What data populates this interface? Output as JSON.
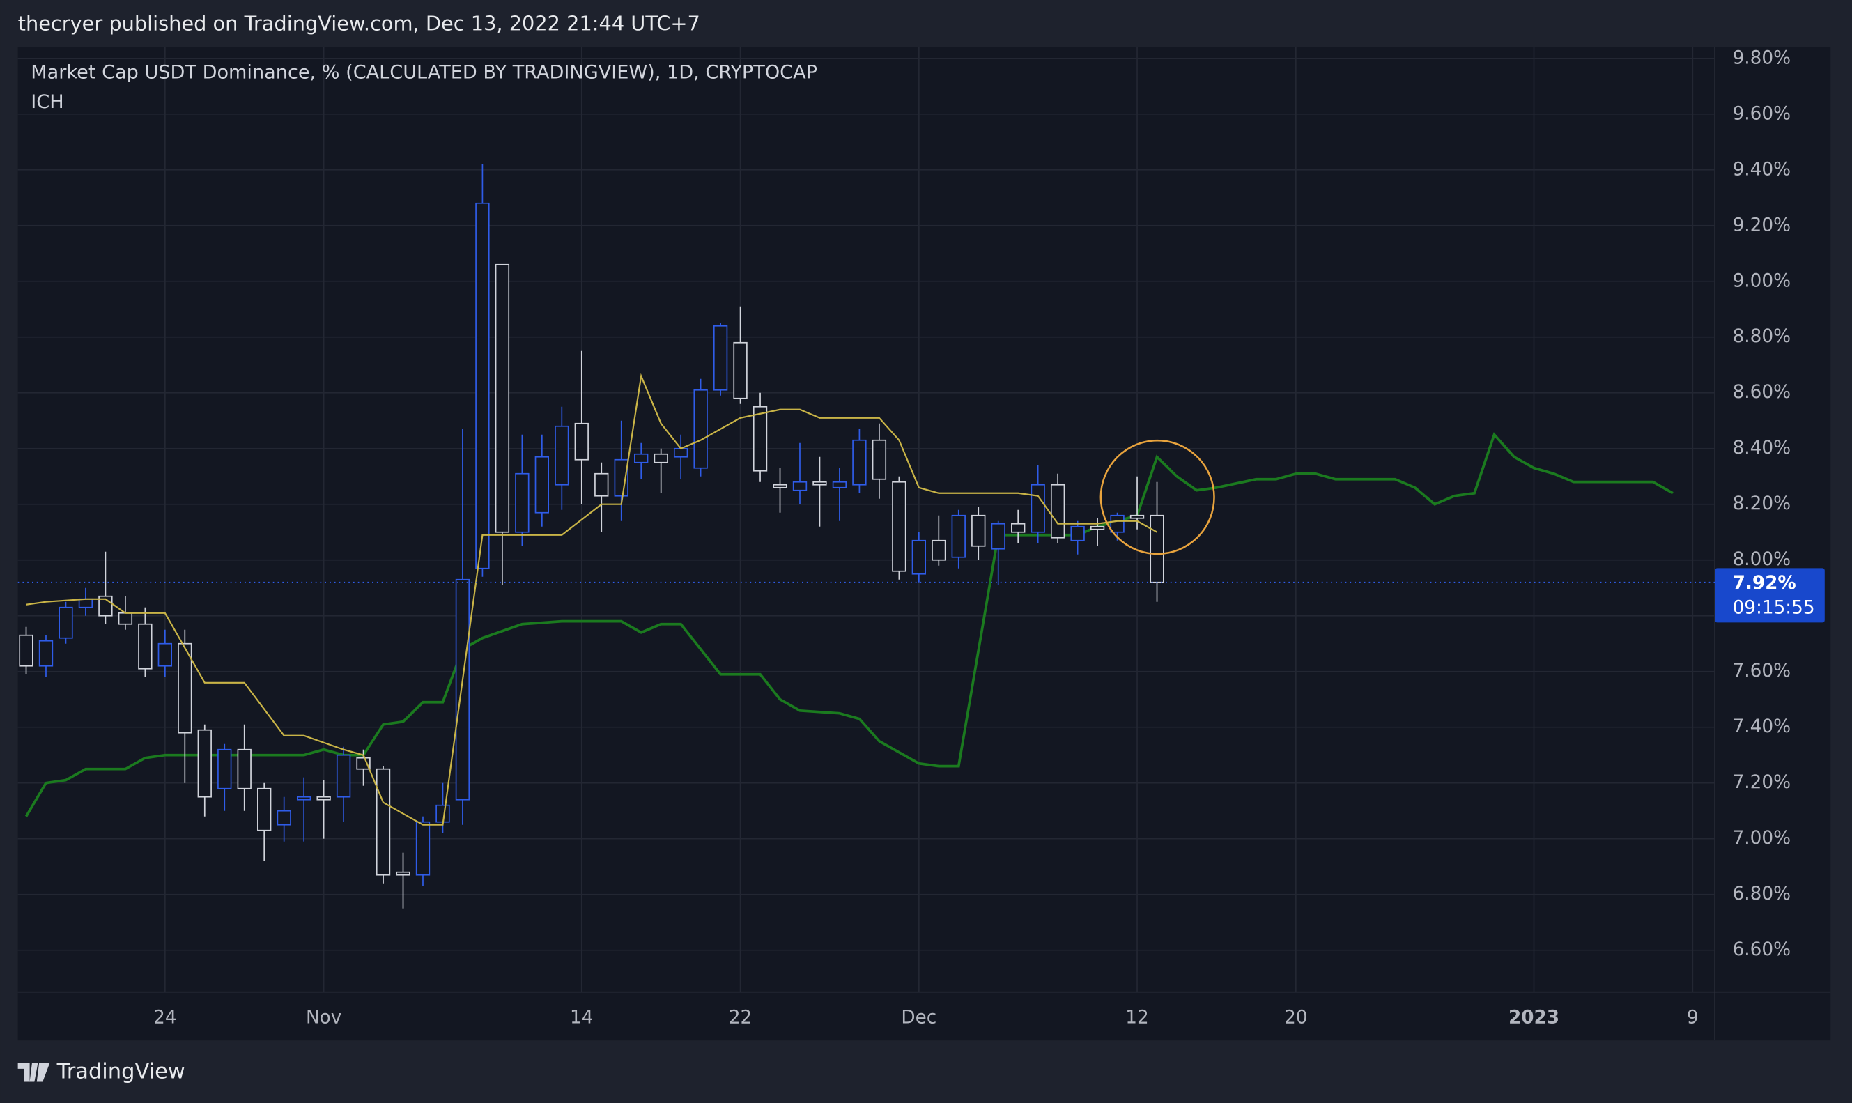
{
  "header": "thecryer published on TradingView.com, Dec 13, 2022 21:44 UTC+7",
  "footer": "TradingView",
  "chart_data": {
    "type": "candlestick",
    "title": "Market Cap USDT Dominance, % (CALCULATED BY TRADINGVIEW), 1D, CRYPTOCAP",
    "subtitle": "ICH",
    "up_color": "#2f5ce8",
    "down_color": "#d1d4dc",
    "x": [
      "2022-10-17",
      "2022-10-18",
      "2022-10-19",
      "2022-10-20",
      "2022-10-21",
      "2022-10-22",
      "2022-10-23",
      "2022-10-24",
      "2022-10-25",
      "2022-10-26",
      "2022-10-27",
      "2022-10-28",
      "2022-10-29",
      "2022-10-30",
      "2022-10-31",
      "2022-11-01",
      "2022-11-02",
      "2022-11-03",
      "2022-11-04",
      "2022-11-05",
      "2022-11-06",
      "2022-11-07",
      "2022-11-08",
      "2022-11-09",
      "2022-11-10",
      "2022-11-11",
      "2022-11-12",
      "2022-11-13",
      "2022-11-14",
      "2022-11-15",
      "2022-11-16",
      "2022-11-17",
      "2022-11-18",
      "2022-11-19",
      "2022-11-20",
      "2022-11-21",
      "2022-11-22",
      "2022-11-23",
      "2022-11-24",
      "2022-11-25",
      "2022-11-26",
      "2022-11-27",
      "2022-11-28",
      "2022-11-29",
      "2022-11-30",
      "2022-12-01",
      "2022-12-02",
      "2022-12-03",
      "2022-12-04",
      "2022-12-05",
      "2022-12-06",
      "2022-12-07",
      "2022-12-08",
      "2022-12-09",
      "2022-12-10",
      "2022-12-11",
      "2022-12-12",
      "2022-12-13"
    ],
    "open": [
      7.73,
      7.62,
      7.72,
      7.83,
      7.87,
      7.81,
      7.77,
      7.62,
      7.7,
      7.39,
      7.18,
      7.32,
      7.18,
      7.05,
      7.14,
      7.15,
      7.15,
      7.29,
      7.25,
      6.88,
      6.87,
      7.06,
      7.14,
      7.97,
      9.06,
      8.1,
      8.17,
      8.27,
      8.49,
      8.31,
      8.23,
      8.35,
      8.38,
      8.37,
      8.33,
      8.61,
      8.78,
      8.55,
      8.27,
      8.25,
      8.28,
      8.26,
      8.27,
      8.43,
      8.28,
      7.95,
      8.07,
      8.01,
      8.16,
      8.04,
      8.13,
      8.1,
      8.27,
      8.07,
      8.12,
      8.1,
      8.16,
      8.16
    ],
    "high": [
      7.76,
      7.73,
      7.85,
      7.9,
      8.03,
      7.87,
      7.83,
      7.75,
      7.75,
      7.41,
      7.34,
      7.41,
      7.2,
      7.15,
      7.22,
      7.21,
      7.33,
      7.32,
      7.26,
      6.95,
      7.08,
      7.2,
      8.47,
      9.42,
      9.06,
      8.45,
      8.45,
      8.55,
      8.75,
      8.35,
      8.5,
      8.42,
      8.4,
      8.45,
      8.65,
      8.85,
      8.91,
      8.6,
      8.33,
      8.42,
      8.37,
      8.33,
      8.47,
      8.49,
      8.3,
      8.1,
      8.16,
      8.18,
      8.19,
      8.14,
      8.18,
      8.34,
      8.31,
      8.14,
      8.15,
      8.17,
      8.3,
      8.28
    ],
    "low": [
      7.59,
      7.58,
      7.7,
      7.8,
      7.77,
      7.75,
      7.58,
      7.58,
      7.2,
      7.08,
      7.1,
      7.1,
      6.92,
      6.99,
      6.99,
      7.0,
      7.06,
      7.19,
      6.84,
      6.75,
      6.83,
      7.02,
      7.05,
      7.94,
      7.91,
      8.05,
      8.12,
      8.18,
      8.2,
      8.1,
      8.14,
      8.29,
      8.24,
      8.29,
      8.3,
      8.59,
      8.56,
      8.28,
      8.17,
      8.2,
      8.12,
      8.14,
      8.24,
      8.22,
      7.93,
      7.92,
      7.98,
      7.97,
      8.0,
      7.91,
      8.06,
      8.06,
      8.06,
      8.02,
      8.05,
      8.07,
      8.11,
      7.85
    ],
    "close": [
      7.62,
      7.71,
      7.83,
      7.86,
      7.8,
      7.77,
      7.61,
      7.7,
      7.38,
      7.15,
      7.32,
      7.18,
      7.03,
      7.1,
      7.15,
      7.14,
      7.3,
      7.25,
      6.87,
      6.87,
      7.06,
      7.12,
      7.93,
      9.28,
      8.1,
      8.31,
      8.37,
      8.48,
      8.36,
      8.23,
      8.36,
      8.38,
      8.35,
      8.4,
      8.61,
      8.84,
      8.58,
      8.32,
      8.26,
      8.28,
      8.27,
      8.28,
      8.43,
      8.29,
      7.96,
      8.07,
      8.0,
      8.16,
      8.05,
      8.13,
      8.1,
      8.27,
      8.08,
      8.12,
      8.11,
      8.16,
      8.15,
      7.92
    ],
    "overlays": [
      {
        "color": "#c9b447",
        "x": [
          "2022-10-17",
          "2022-10-18",
          "2022-10-20",
          "2022-10-21",
          "2022-10-22",
          "2022-10-24",
          "2022-10-26",
          "2022-10-28",
          "2022-10-30",
          "2022-10-31",
          "2022-11-02",
          "2022-11-03",
          "2022-11-04",
          "2022-11-06",
          "2022-11-07",
          "2022-11-09",
          "2022-11-13",
          "2022-11-15",
          "2022-11-16",
          "2022-11-17",
          "2022-11-18",
          "2022-11-19",
          "2022-11-20",
          "2022-11-22",
          "2022-11-24",
          "2022-11-25",
          "2022-11-26",
          "2022-11-29",
          "2022-11-30",
          "2022-12-01",
          "2022-12-02",
          "2022-12-06",
          "2022-12-07",
          "2022-12-08",
          "2022-12-10",
          "2022-12-11",
          "2022-12-12",
          "2022-12-13"
        ],
        "values": [
          7.84,
          7.85,
          7.86,
          7.86,
          7.81,
          7.81,
          7.56,
          7.56,
          7.37,
          7.37,
          7.32,
          7.3,
          7.13,
          7.05,
          7.05,
          8.09,
          8.09,
          8.2,
          8.2,
          8.66,
          8.49,
          8.4,
          8.43,
          8.51,
          8.54,
          8.54,
          8.51,
          8.51,
          8.43,
          8.26,
          8.24,
          8.24,
          8.23,
          8.13,
          8.13,
          8.14,
          8.14,
          8.1
        ]
      },
      {
        "color": "#1b7a1f",
        "x": [
          "2022-10-17",
          "2022-10-18",
          "2022-10-19",
          "2022-10-20",
          "2022-10-22",
          "2022-10-23",
          "2022-10-24",
          "2022-10-26",
          "2022-10-31",
          "2022-11-01",
          "2022-11-02",
          "2022-11-03",
          "2022-11-04",
          "2022-11-05",
          "2022-11-06",
          "2022-11-07",
          "2022-11-08",
          "2022-11-09",
          "2022-11-11",
          "2022-11-13",
          "2022-11-16",
          "2022-11-17",
          "2022-11-18",
          "2022-11-19",
          "2022-11-21",
          "2022-11-23",
          "2022-11-24",
          "2022-11-25",
          "2022-11-27",
          "2022-11-28",
          "2022-11-29",
          "2022-12-01",
          "2022-12-02",
          "2022-12-03",
          "2022-12-05",
          "2022-12-08",
          "2022-12-09",
          "2022-12-10",
          "2022-12-11",
          "2022-12-12",
          "2022-12-13",
          "2022-12-14",
          "2022-12-15",
          "2022-12-16",
          "2022-12-18",
          "2022-12-19",
          "2022-12-20",
          "2022-12-21",
          "2022-12-22",
          "2022-12-25",
          "2022-12-26",
          "2022-12-27",
          "2022-12-28",
          "2022-12-29",
          "2022-12-30",
          "2022-12-31",
          "2023-01-01",
          "2023-01-02",
          "2023-01-03",
          "2023-01-07",
          "2023-01-08"
        ],
        "values": [
          7.08,
          7.2,
          7.21,
          7.25,
          7.25,
          7.29,
          7.3,
          7.3,
          7.3,
          7.32,
          7.3,
          7.3,
          7.41,
          7.42,
          7.49,
          7.49,
          7.68,
          7.72,
          7.77,
          7.78,
          7.78,
          7.74,
          7.77,
          7.77,
          7.59,
          7.59,
          7.5,
          7.46,
          7.45,
          7.43,
          7.35,
          7.27,
          7.26,
          7.26,
          8.09,
          8.09,
          8.09,
          8.12,
          8.14,
          8.16,
          8.37,
          8.3,
          8.25,
          8.26,
          8.29,
          8.29,
          8.31,
          8.31,
          8.29,
          8.29,
          8.26,
          8.2,
          8.23,
          8.24,
          8.45,
          8.37,
          8.33,
          8.31,
          8.28,
          8.28,
          8.24
        ]
      }
    ],
    "last_price": {
      "value": 7.92,
      "label": "7.92%"
    },
    "countdown": "09:15:55",
    "xlim": [
      "2022-10-16",
      "2023-01-10"
    ],
    "xticks": [
      {
        "value": "2022-10-24",
        "label": "24"
      },
      {
        "value": "2022-11-01",
        "label": "Nov"
      },
      {
        "value": "2022-11-14",
        "label": "14"
      },
      {
        "value": "2022-11-22",
        "label": "22"
      },
      {
        "value": "2022-12-01",
        "label": "Dec"
      },
      {
        "value": "2022-12-12",
        "label": "12"
      },
      {
        "value": "2022-12-20",
        "label": "20"
      },
      {
        "value": "2023-01-01",
        "label": "2023"
      },
      {
        "value": "2023-01-09",
        "label": "9"
      }
    ],
    "ylim": [
      6.45,
      9.84
    ],
    "yticks": [
      {
        "value": 6.6,
        "label": "6.60%"
      },
      {
        "value": 6.8,
        "label": "6.80%"
      },
      {
        "value": 7.0,
        "label": "7.00%"
      },
      {
        "value": 7.2,
        "label": "7.20%"
      },
      {
        "value": 7.4,
        "label": "7.40%"
      },
      {
        "value": 7.6,
        "label": "7.60%"
      },
      {
        "value": 7.8,
        "label": "7.80%"
      },
      {
        "value": 8.0,
        "label": "8.00%"
      },
      {
        "value": 8.2,
        "label": "8.20%"
      },
      {
        "value": 8.4,
        "label": "8.40%"
      },
      {
        "value": 8.6,
        "label": "8.60%"
      },
      {
        "value": 8.8,
        "label": "8.80%"
      },
      {
        "value": 9.0,
        "label": "9.00%"
      },
      {
        "value": 9.2,
        "label": "9.20%"
      },
      {
        "value": 9.4,
        "label": "9.40%"
      },
      {
        "value": 9.6,
        "label": "9.60%"
      },
      {
        "value": 9.8,
        "label": "9.80%"
      }
    ],
    "grid": true
  }
}
